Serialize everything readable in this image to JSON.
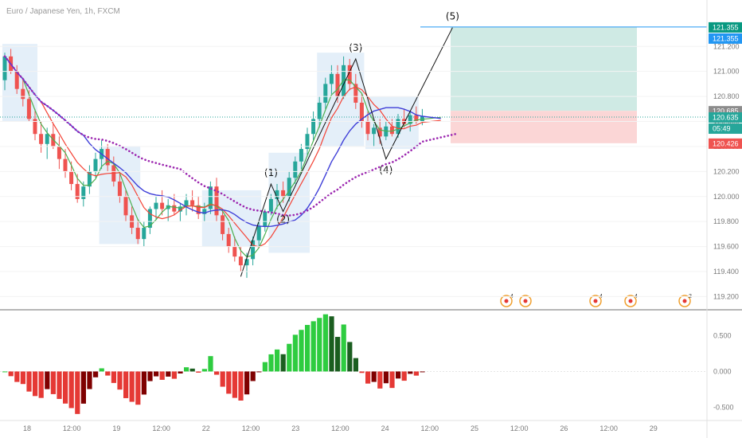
{
  "title": "Euro / Japanese Yen, 1h, FXCM",
  "chart_data": {
    "type": "candlestick",
    "symbol": "EURJPY",
    "timeframe": "1h",
    "source": "FXCM",
    "ylim": [
      119.12,
      121.52
    ],
    "price_ticks": [
      119.2,
      119.4,
      119.6,
      119.8,
      120.0,
      120.2,
      120.4,
      120.6,
      120.8,
      121.0,
      121.2
    ],
    "price_tick_labels": [
      "119.200",
      "119.400",
      "119.600",
      "119.800",
      "120.000",
      "120.200",
      "120.400",
      "120.600",
      "120.800",
      "121.000",
      "121.200"
    ],
    "time_labels": [
      "18",
      "12:00",
      "19",
      "12:00",
      "22",
      "12:00",
      "23",
      "12:00",
      "24",
      "12:00",
      "25",
      "12:00",
      "26",
      "12:00",
      "29"
    ],
    "price_tags": [
      {
        "value": 121.355,
        "label": "121.355",
        "color": "#089981"
      },
      {
        "value": 121.355,
        "label": "121.355",
        "color": "#2196f3",
        "row": 1
      },
      {
        "value": 120.685,
        "label": "120.685",
        "color": "#8c8c8c"
      },
      {
        "value": 120.635,
        "label": "120.635",
        "color": "#26a69a"
      },
      {
        "value": 120.635,
        "label": "05:49",
        "color": "#26a69a",
        "row": 1
      },
      {
        "value": 120.426,
        "label": "120.426",
        "color": "#ef5350"
      }
    ],
    "candles": [
      [
        120.93,
        121.15,
        120.85,
        121.12
      ],
      [
        121.12,
        121.18,
        120.98,
        121.0
      ],
      [
        121.0,
        121.05,
        120.82,
        120.86
      ],
      [
        120.86,
        120.95,
        120.72,
        120.78
      ],
      [
        120.78,
        120.85,
        120.6,
        120.62
      ],
      [
        120.62,
        120.7,
        120.45,
        120.5
      ],
      [
        120.5,
        120.6,
        120.35,
        120.42
      ],
      [
        120.42,
        120.55,
        120.3,
        120.5
      ],
      [
        120.5,
        120.58,
        120.38,
        120.4
      ],
      [
        120.4,
        120.48,
        120.22,
        120.3
      ],
      [
        120.3,
        120.38,
        120.15,
        120.2
      ],
      [
        120.2,
        120.28,
        120.05,
        120.1
      ],
      [
        120.1,
        120.18,
        119.95,
        119.98
      ],
      [
        119.98,
        120.12,
        119.92,
        120.08
      ],
      [
        120.08,
        120.25,
        120.02,
        120.2
      ],
      [
        120.2,
        120.35,
        120.15,
        120.3
      ],
      [
        120.3,
        120.45,
        120.22,
        120.38
      ],
      [
        120.38,
        120.42,
        120.2,
        120.25
      ],
      [
        120.25,
        120.32,
        120.08,
        120.12
      ],
      [
        120.12,
        120.2,
        119.95,
        120.0
      ],
      [
        120.0,
        120.05,
        119.8,
        119.85
      ],
      [
        119.85,
        119.92,
        119.7,
        119.75
      ],
      [
        119.75,
        119.82,
        119.62,
        119.66
      ],
      [
        119.66,
        119.8,
        119.6,
        119.75
      ],
      [
        119.75,
        119.92,
        119.7,
        119.9
      ],
      [
        119.9,
        120.0,
        119.82,
        119.95
      ],
      [
        119.95,
        120.05,
        119.85,
        119.9
      ],
      [
        119.9,
        119.98,
        119.8,
        119.93
      ],
      [
        119.93,
        120.02,
        119.85,
        119.88
      ],
      [
        119.88,
        119.95,
        119.8,
        119.92
      ],
      [
        119.92,
        120.02,
        119.85,
        119.97
      ],
      [
        119.97,
        120.05,
        119.88,
        119.93
      ],
      [
        119.93,
        120.0,
        119.82,
        119.86
      ],
      [
        119.86,
        119.95,
        119.8,
        119.9
      ],
      [
        119.9,
        120.12,
        119.86,
        120.08
      ],
      [
        120.08,
        120.15,
        119.8,
        119.85
      ],
      [
        119.85,
        119.9,
        119.65,
        119.7
      ],
      [
        119.7,
        119.75,
        119.55,
        119.6
      ],
      [
        119.6,
        119.68,
        119.48,
        119.52
      ],
      [
        119.52,
        119.6,
        119.4,
        119.45
      ],
      [
        119.45,
        119.55,
        119.35,
        119.5
      ],
      [
        119.5,
        119.68,
        119.45,
        119.65
      ],
      [
        119.65,
        119.8,
        119.6,
        119.76
      ],
      [
        119.76,
        119.9,
        119.72,
        119.88
      ],
      [
        119.88,
        120.02,
        119.85,
        119.98
      ],
      [
        119.98,
        120.1,
        119.9,
        120.05
      ],
      [
        120.05,
        120.12,
        119.95,
        120.0
      ],
      [
        120.0,
        120.2,
        119.96,
        120.15
      ],
      [
        120.15,
        120.32,
        120.1,
        120.28
      ],
      [
        120.28,
        120.42,
        120.22,
        120.38
      ],
      [
        120.38,
        120.55,
        120.32,
        120.5
      ],
      [
        120.5,
        120.68,
        120.45,
        120.62
      ],
      [
        120.62,
        120.8,
        120.55,
        120.75
      ],
      [
        120.75,
        120.95,
        120.7,
        120.9
      ],
      [
        120.9,
        121.05,
        120.82,
        120.98
      ],
      [
        120.98,
        121.05,
        120.75,
        120.8
      ],
      [
        120.8,
        121.12,
        120.78,
        121.05
      ],
      [
        121.05,
        121.1,
        120.85,
        120.9
      ],
      [
        120.9,
        120.98,
        120.7,
        120.75
      ],
      [
        120.75,
        120.82,
        120.55,
        120.6
      ],
      [
        120.6,
        120.68,
        120.45,
        120.5
      ],
      [
        120.5,
        120.58,
        120.4,
        120.55
      ],
      [
        120.55,
        120.62,
        120.42,
        120.48
      ],
      [
        120.48,
        120.6,
        120.45,
        120.56
      ],
      [
        120.56,
        120.62,
        120.48,
        120.5
      ],
      [
        120.5,
        120.66,
        120.47,
        120.62
      ],
      [
        120.62,
        120.7,
        120.55,
        120.58
      ],
      [
        120.58,
        120.68,
        120.52,
        120.65
      ],
      [
        120.65,
        120.72,
        120.58,
        120.6
      ],
      [
        120.6,
        120.7,
        120.57,
        120.64
      ]
    ],
    "first_candle_x": 6,
    "candle_spacing": 7.6,
    "oscillator": {
      "ylim": [
        -0.62,
        0.82
      ],
      "ticks": [
        0.5,
        0.0,
        -0.5
      ],
      "tick_labels": [
        "0.500",
        "0.000",
        "-0.500"
      ]
    },
    "wave_labels": [
      "(1)",
      "(2)",
      "(3)",
      "(4)",
      "(5)"
    ],
    "event_markers": [
      "4",
      "",
      "4",
      "4",
      "2"
    ],
    "colors": {
      "up": "#26a69a",
      "down": "#ef5350",
      "ma_fast": "#4caf50",
      "ma_mid": "#f44336",
      "ma_slow": "#3f3fd8",
      "ma_dotted": "#9c27b0",
      "range_box": "#dbe9f7",
      "target_zone": "#cfeae4",
      "stop_zone": "#fbd6d6",
      "osc_pos_strong": "#2ecc40",
      "osc_pos_weak": "#1b5e20",
      "osc_neg_strong": "#e53935",
      "osc_neg_weak": "#7f0000"
    }
  }
}
